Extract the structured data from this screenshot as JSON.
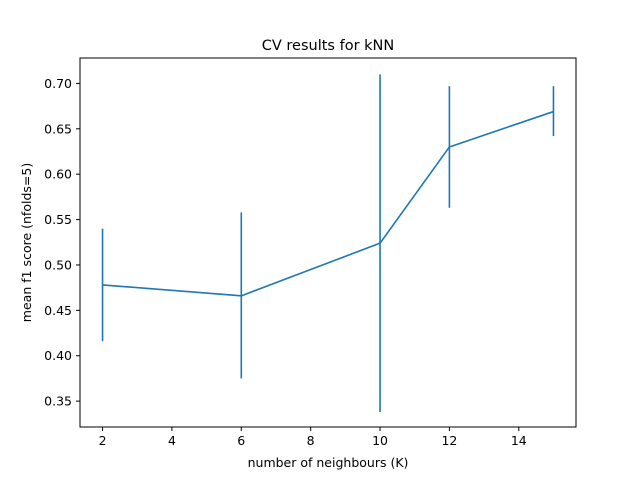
{
  "chart_data": {
    "type": "line",
    "title": "CV results for kNN",
    "xlabel": "number of neighbours (K)",
    "ylabel": "mean f1 score (nfolds=5)",
    "xlim": [
      1.35,
      15.65
    ],
    "ylim": [
      0.3215,
      0.728
    ],
    "x_ticks": [
      2,
      4,
      6,
      8,
      10,
      12,
      14
    ],
    "y_ticks": [
      0.35,
      0.4,
      0.45,
      0.5,
      0.55,
      0.6,
      0.65,
      0.7
    ],
    "y_tick_labels": [
      "0.35",
      "0.40",
      "0.45",
      "0.50",
      "0.55",
      "0.60",
      "0.65",
      "0.70"
    ],
    "grid": false,
    "series": [
      {
        "color": "#1f77b4",
        "x": [
          2,
          6,
          10,
          12,
          15
        ],
        "y": [
          0.478,
          0.466,
          0.524,
          0.63,
          0.669
        ],
        "err_low": [
          0.416,
          0.375,
          0.338,
          0.563,
          0.642
        ],
        "err_high": [
          0.54,
          0.558,
          0.71,
          0.697,
          0.697
        ]
      }
    ]
  }
}
